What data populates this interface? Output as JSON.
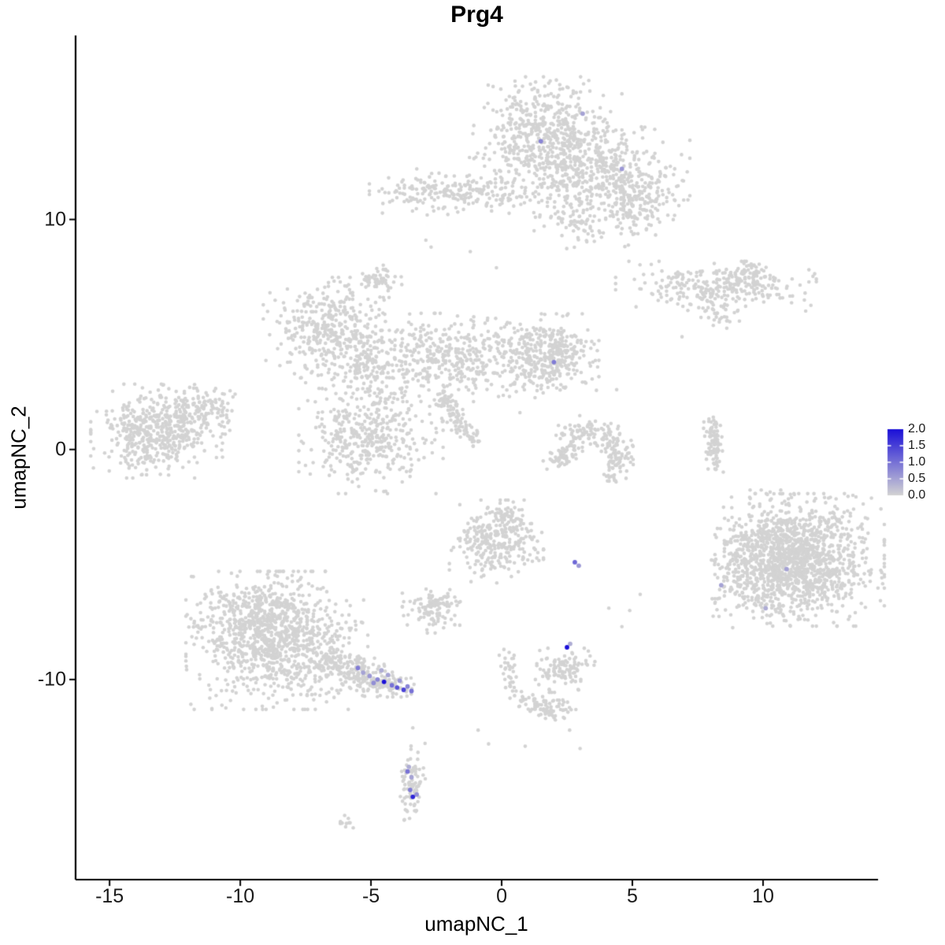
{
  "title": "Prg4",
  "axes": {
    "x": {
      "label": "umapNC_1",
      "ticks": [
        "-15",
        "-10",
        "-5",
        "0",
        "5",
        "10"
      ],
      "tick_values": [
        -15,
        -10,
        -5,
        0,
        5,
        10
      ]
    },
    "y": {
      "label": "umapNC_2",
      "ticks": [
        "-10",
        "0",
        "10"
      ],
      "tick_values": [
        -10,
        0,
        10
      ]
    }
  },
  "legend": {
    "labels": [
      "2.0",
      "1.5",
      "1.0",
      "0.5",
      "0.0"
    ],
    "values": [
      2.0,
      1.5,
      1.0,
      0.5,
      0.0
    ],
    "vmin": 0,
    "vmax": 2,
    "low_color": "#D3D3D3",
    "high_color": "#1A0FD8"
  },
  "chart_data": {
    "type": "scatter",
    "title": "Prg4",
    "xlabel": "umapNC_1",
    "ylabel": "umapNC_2",
    "xlim": [
      -16.3,
      14.4
    ],
    "ylim": [
      -18.7,
      18.0
    ],
    "grid": false,
    "legend_position": "right",
    "background_point_color": "#D3D3D3",
    "expression_color_low": "#D3D3D3",
    "expression_color_high": "#1A0FD8",
    "seed": 42,
    "clusters": [
      {
        "name": "top-main",
        "type": "gauss",
        "cx": 1.6,
        "cy": 13.8,
        "sx": 1.25,
        "sy": 1.0,
        "n": 500
      },
      {
        "name": "top-arm",
        "type": "gauss",
        "cx": 3.6,
        "cy": 11.9,
        "sx": 1.5,
        "sy": 1.0,
        "n": 520
      },
      {
        "name": "top-right-lobe",
        "type": "gauss",
        "cx": 5.1,
        "cy": 10.5,
        "sx": 0.7,
        "sy": 0.7,
        "n": 140
      },
      {
        "name": "top-tail",
        "type": "gauss",
        "cx": 2.9,
        "cy": 9.9,
        "sx": 0.45,
        "sy": 0.5,
        "n": 55
      },
      {
        "name": "upper-left-strip",
        "type": "gauss",
        "cx": -2.3,
        "cy": 11.2,
        "sx": 1.15,
        "sy": 0.42,
        "n": 170
      },
      {
        "name": "upper-left-link",
        "type": "gauss",
        "cx": -0.4,
        "cy": 11.1,
        "sx": 0.75,
        "sy": 0.35,
        "n": 60
      },
      {
        "name": "upper-right-strip",
        "type": "gauss",
        "cx": 8.2,
        "cy": 7.1,
        "sx": 1.6,
        "sy": 0.45,
        "n": 260
      },
      {
        "name": "upper-right-lobe",
        "type": "gauss",
        "cx": 9.4,
        "cy": 7.5,
        "sx": 0.5,
        "sy": 0.35,
        "n": 70
      },
      {
        "name": "upper-right-small",
        "type": "gauss",
        "cx": 8.5,
        "cy": 5.8,
        "sx": 0.4,
        "sy": 0.25,
        "n": 30
      },
      {
        "name": "midleft-blob",
        "type": "gauss",
        "cx": -6.6,
        "cy": 5.2,
        "sx": 1.05,
        "sy": 0.95,
        "n": 370
      },
      {
        "name": "midleft-tail",
        "type": "gauss",
        "cx": -5.3,
        "cy": 3.7,
        "sx": 0.5,
        "sy": 0.5,
        "n": 80
      },
      {
        "name": "small-upper-mid",
        "type": "gauss",
        "cx": -4.6,
        "cy": 7.4,
        "sx": 0.4,
        "sy": 0.33,
        "n": 55
      },
      {
        "name": "central-band",
        "type": "gauss",
        "cx": -2.0,
        "cy": 4.0,
        "sx": 2.1,
        "sy": 0.8,
        "n": 520
      },
      {
        "name": "central-right-blob",
        "type": "gauss",
        "cx": 1.8,
        "cy": 4.1,
        "sx": 0.8,
        "sy": 0.75,
        "n": 330
      },
      {
        "name": "central-strand",
        "type": "line",
        "x1": -2.4,
        "y1": 2.4,
        "x2": -1.0,
        "y2": 0.3,
        "w": 0.22,
        "n": 110
      },
      {
        "name": "central-lower-blob",
        "type": "gauss",
        "cx": -5.0,
        "cy": 0.6,
        "sx": 1.15,
        "sy": 1.05,
        "n": 430
      },
      {
        "name": "far-left",
        "type": "gauss",
        "cx": -13.2,
        "cy": 0.8,
        "sx": 1.05,
        "sy": 0.85,
        "n": 520
      },
      {
        "name": "far-left-tail",
        "type": "gauss",
        "cx": -11.5,
        "cy": 1.7,
        "sx": 0.7,
        "sy": 0.5,
        "n": 110
      },
      {
        "name": "crescent",
        "type": "arc",
        "cx": 3.4,
        "cy": -0.3,
        "r": 1.15,
        "a1": -60,
        "a2": 200,
        "w": 0.28,
        "n": 230
      },
      {
        "name": "crescent-fill",
        "type": "gauss",
        "cx": 3.4,
        "cy": -0.1,
        "sx": 0.5,
        "sy": 0.4,
        "n": 20
      },
      {
        "name": "right-strip",
        "type": "line",
        "x1": 8.05,
        "y1": 1.3,
        "x2": 8.15,
        "y2": -0.9,
        "w": 0.14,
        "n": 90
      },
      {
        "name": "right-big-core",
        "type": "gauss",
        "cx": 11.4,
        "cy": -4.8,
        "sx": 1.35,
        "sy": 1.2,
        "n": 1250
      },
      {
        "name": "right-big-west",
        "type": "gauss",
        "cx": 10.2,
        "cy": -4.4,
        "sx": 0.7,
        "sy": 1.1,
        "n": 220
      },
      {
        "name": "right-big-wisp",
        "type": "gauss",
        "cx": 8.9,
        "cy": -5.7,
        "sx": 0.45,
        "sy": 0.95,
        "n": 90
      },
      {
        "name": "central-lower",
        "type": "gauss",
        "cx": -0.2,
        "cy": -4.0,
        "sx": 0.75,
        "sy": 0.75,
        "n": 290
      },
      {
        "name": "central-lower-tip",
        "type": "gauss",
        "cx": 0.2,
        "cy": -2.9,
        "sx": 0.3,
        "sy": 0.3,
        "n": 35
      },
      {
        "name": "small-mid-blob",
        "type": "gauss",
        "cx": -2.6,
        "cy": -6.9,
        "sx": 0.5,
        "sy": 0.45,
        "n": 120
      },
      {
        "name": "bottomleft-core",
        "type": "gauss",
        "cx": -8.6,
        "cy": -8.3,
        "sx": 1.45,
        "sy": 1.25,
        "n": 1050
      },
      {
        "name": "bottomleft-top",
        "type": "gauss",
        "cx": -9.6,
        "cy": -7.1,
        "sx": 0.8,
        "sy": 0.5,
        "n": 140
      },
      {
        "name": "bottomleft-tail",
        "type": "line",
        "x1": -6.6,
        "y1": -9.2,
        "x2": -4.0,
        "y2": -10.4,
        "w": 0.34,
        "n": 250
      },
      {
        "name": "small-lower-mid",
        "type": "gauss",
        "cx": 2.4,
        "cy": -9.6,
        "sx": 0.5,
        "sy": 0.4,
        "n": 110
      },
      {
        "name": "lower-strip",
        "type": "line",
        "x1": 0.2,
        "y1": -8.8,
        "x2": 0.3,
        "y2": -10.6,
        "w": 0.18,
        "n": 35
      },
      {
        "name": "lower-diag",
        "type": "line",
        "x1": 0.6,
        "y1": -10.9,
        "x2": 1.9,
        "y2": -11.4,
        "w": 0.2,
        "n": 45
      },
      {
        "name": "lower-blob",
        "type": "gauss",
        "cx": 2.0,
        "cy": -11.3,
        "sx": 0.35,
        "sy": 0.3,
        "n": 45
      },
      {
        "name": "bottom-strip",
        "type": "gauss",
        "cx": -3.45,
        "cy": -14.5,
        "sx": 0.22,
        "sy": 0.75,
        "n": 85
      },
      {
        "name": "bottom-dash",
        "type": "gauss",
        "cx": -6.0,
        "cy": -16.2,
        "sx": 0.25,
        "sy": 0.12,
        "n": 12
      }
    ],
    "singles": [
      [
        -2.9,
        9.1
      ],
      [
        -2.7,
        8.8
      ],
      [
        4.9,
        -7.0
      ],
      [
        4.6,
        -7.7
      ],
      [
        5.3,
        -6.3
      ],
      [
        4.1,
        -6.9
      ],
      [
        -0.9,
        -12.2
      ],
      [
        -0.5,
        -12.8
      ],
      [
        0.9,
        -12.9
      ],
      [
        2.6,
        -12.2
      ],
      [
        -3.4,
        -12.1
      ],
      [
        3.0,
        -13.0
      ],
      [
        -1.6,
        -2.4
      ],
      [
        0.7,
        1.6
      ],
      [
        4.4,
        2.6
      ],
      [
        6.9,
        4.9
      ],
      [
        -7.5,
        2.9
      ],
      [
        -0.2,
        7.9
      ],
      [
        -1.2,
        8.6
      ]
    ],
    "expressing_cells": [
      {
        "x": 3.1,
        "y": 14.6,
        "v": 0.5
      },
      {
        "x": 1.5,
        "y": 13.4,
        "v": 0.8
      },
      {
        "x": 4.6,
        "y": 12.2,
        "v": 0.6
      },
      {
        "x": 2.0,
        "y": 3.8,
        "v": 0.9
      },
      {
        "x": 2.8,
        "y": -4.9,
        "v": 1.1
      },
      {
        "x": 2.95,
        "y": -5.05,
        "v": 0.6
      },
      {
        "x": 2.5,
        "y": -8.6,
        "v": 2.0
      },
      {
        "x": 2.62,
        "y": -8.45,
        "v": 0.4
      },
      {
        "x": 10.9,
        "y": -5.2,
        "v": 0.5
      },
      {
        "x": 8.4,
        "y": -5.9,
        "v": 0.5
      },
      {
        "x": 10.1,
        "y": -6.9,
        "v": 0.4
      },
      {
        "x": -5.5,
        "y": -9.5,
        "v": 0.9
      },
      {
        "x": -5.3,
        "y": -9.7,
        "v": 0.5
      },
      {
        "x": -5.05,
        "y": -9.85,
        "v": 0.6
      },
      {
        "x": -4.75,
        "y": -10.0,
        "v": 0.8
      },
      {
        "x": -4.5,
        "y": -10.1,
        "v": 2.0
      },
      {
        "x": -4.35,
        "y": -9.8,
        "v": 0.5
      },
      {
        "x": -4.2,
        "y": -10.25,
        "v": 1.0
      },
      {
        "x": -4.0,
        "y": -10.35,
        "v": 1.3
      },
      {
        "x": -3.9,
        "y": -10.05,
        "v": 0.6
      },
      {
        "x": -3.75,
        "y": -10.45,
        "v": 1.5
      },
      {
        "x": -3.6,
        "y": -10.3,
        "v": 0.8
      },
      {
        "x": -3.45,
        "y": -10.5,
        "v": 1.0
      },
      {
        "x": -4.6,
        "y": -9.6,
        "v": 0.4
      },
      {
        "x": -4.9,
        "y": -10.15,
        "v": 0.7
      },
      {
        "x": -3.6,
        "y": -14.0,
        "v": 1.0
      },
      {
        "x": -3.45,
        "y": -14.25,
        "v": 0.5
      },
      {
        "x": -3.5,
        "y": -14.8,
        "v": 0.9
      },
      {
        "x": -3.4,
        "y": -15.1,
        "v": 1.8
      },
      {
        "x": -3.25,
        "y": -15.0,
        "v": 0.7
      },
      {
        "x": -3.55,
        "y": -13.8,
        "v": 0.4
      }
    ]
  }
}
